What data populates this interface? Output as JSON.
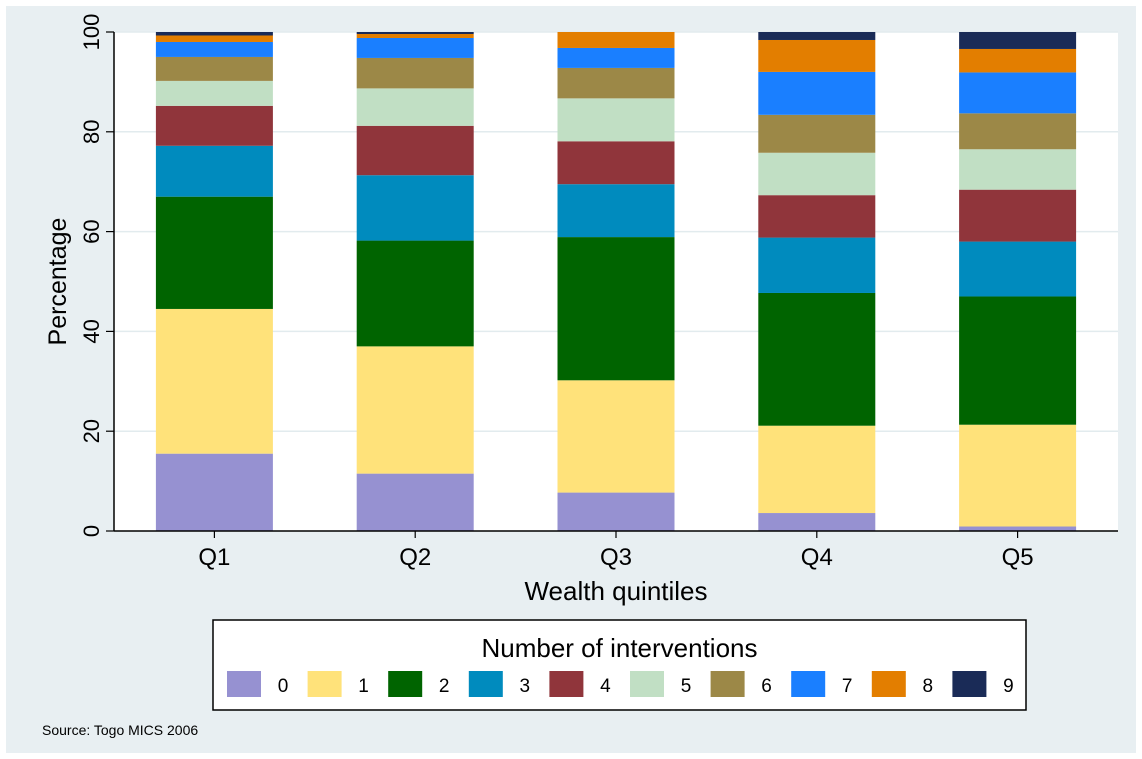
{
  "chart_data": {
    "type": "bar",
    "stacked": true,
    "categories": [
      "Q1",
      "Q2",
      "Q3",
      "Q4",
      "Q5"
    ],
    "xlabel": "Wealth quintiles",
    "ylabel": "Percentage",
    "ylim": [
      0,
      100
    ],
    "yticks": [
      0,
      20,
      40,
      60,
      80,
      100
    ],
    "grid": true,
    "legend": {
      "title": "Number of interventions",
      "placement": "bottom"
    },
    "series": [
      {
        "name": "0",
        "color": "#9691d1",
        "values": [
          15.5,
          11.5,
          7.7,
          3.6,
          0.9
        ]
      },
      {
        "name": "1",
        "color": "#ffe27a",
        "values": [
          29.0,
          25.5,
          22.5,
          17.5,
          20.4
        ]
      },
      {
        "name": "2",
        "color": "#006400",
        "values": [
          22.5,
          21.2,
          28.7,
          26.6,
          25.7
        ]
      },
      {
        "name": "3",
        "color": "#008bbe",
        "values": [
          10.2,
          13.1,
          10.6,
          11.1,
          11.0
        ]
      },
      {
        "name": "4",
        "color": "#90353b",
        "values": [
          8.0,
          9.9,
          8.6,
          8.5,
          10.4
        ]
      },
      {
        "name": "5",
        "color": "#c1dfc4",
        "values": [
          5.0,
          7.5,
          8.6,
          8.5,
          8.1
        ]
      },
      {
        "name": "6",
        "color": "#9c8847",
        "values": [
          4.8,
          6.1,
          6.1,
          7.6,
          7.2
        ]
      },
      {
        "name": "7",
        "color": "#1a7fff",
        "values": [
          3.0,
          4.0,
          4.0,
          8.6,
          8.2
        ]
      },
      {
        "name": "8",
        "color": "#e37e00",
        "values": [
          1.3,
          0.8,
          3.2,
          6.4,
          4.7
        ]
      },
      {
        "name": "9",
        "color": "#1a2b57",
        "values": [
          0.7,
          0.4,
          0.0,
          1.6,
          3.4
        ]
      }
    ]
  },
  "source_note": "Source: Togo MICS 2006"
}
